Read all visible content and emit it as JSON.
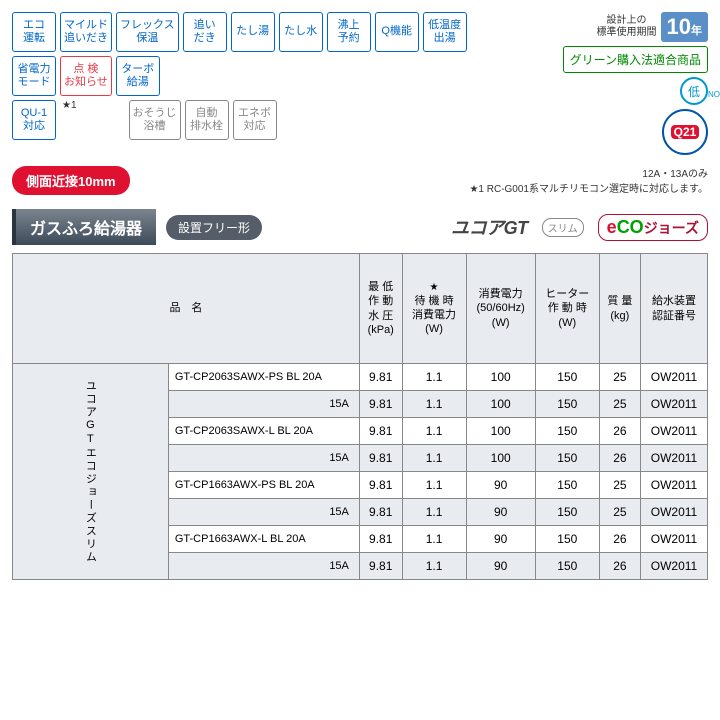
{
  "features": {
    "r1": [
      "エコ\n運転",
      "マイルド\n追いだき",
      "フレックス\n保温",
      "追い\nだき",
      "たし湯",
      "たし水",
      "沸上\n予約",
      "Q機能",
      "低温度\n出湯"
    ],
    "r2_a": [
      "省電力\nモード"
    ],
    "r2_red": "点 検\nお知らせ",
    "r2_b": [
      "ターボ\n給湯"
    ],
    "r3_a": [
      "QU-1\n対応"
    ],
    "r3_gray": [
      "おそうじ\n浴槽",
      "自動\n排水栓",
      "エネボ\n対応"
    ]
  },
  "design_label": "設計上の\n標準使用期間",
  "ten": "10",
  "ten_unit": "年",
  "green_badge": "グリーン購入法適合商品",
  "low_nox": "低",
  "low_nox_sub": "NOx",
  "q21": "Q21",
  "star1_mark": "★1",
  "side_badge": "側面近接10mm",
  "note_12a": "12A・13Aのみ",
  "note_star1": "★1 RC-G001系マルチリモコン選定時に対応します。",
  "title": "ガスふろ給湯器",
  "sub_pill": "設置フリー形",
  "brand_gt": "ユコアGT",
  "slim": "スリム",
  "eco_e": "e",
  "eco_c": "CO",
  "eco_rest": "ジョーズ",
  "table": {
    "head_name": "品　名",
    "head_vert": "ユコアGTエコジョーズスリム",
    "cols": [
      "最 低\n作 動\n水 圧\n(kPa)",
      "待 機 時\n消費電力\n(W)",
      "消費電力\n(50/60Hz)\n(W)",
      "ヒーター\n作 動 時\n(W)",
      "質 量\n(kg)",
      "給水装置\n認証番号"
    ],
    "rows": [
      {
        "name": "GT-CP2063SAWX-PS BL",
        "a": "20A",
        "v": [
          "9.81",
          "1.1",
          "100",
          "150",
          "25",
          "OW2011"
        ],
        "alt": false
      },
      {
        "name": "",
        "a": "15A",
        "v": [
          "9.81",
          "1.1",
          "100",
          "150",
          "25",
          "OW2011"
        ],
        "alt": true
      },
      {
        "name": "GT-CP2063SAWX-L BL",
        "a": "20A",
        "v": [
          "9.81",
          "1.1",
          "100",
          "150",
          "26",
          "OW2011"
        ],
        "alt": false
      },
      {
        "name": "",
        "a": "15A",
        "v": [
          "9.81",
          "1.1",
          "100",
          "150",
          "26",
          "OW2011"
        ],
        "alt": true
      },
      {
        "name": "GT-CP1663AWX-PS BL",
        "a": "20A",
        "v": [
          "9.81",
          "1.1",
          "90",
          "150",
          "25",
          "OW2011"
        ],
        "alt": false
      },
      {
        "name": "",
        "a": "15A",
        "v": [
          "9.81",
          "1.1",
          "90",
          "150",
          "25",
          "OW2011"
        ],
        "alt": true
      },
      {
        "name": "GT-CP1663AWX-L BL",
        "a": "20A",
        "v": [
          "9.81",
          "1.1",
          "90",
          "150",
          "26",
          "OW2011"
        ],
        "alt": false
      },
      {
        "name": "",
        "a": "15A",
        "v": [
          "9.81",
          "1.1",
          "90",
          "150",
          "26",
          "OW2011"
        ],
        "alt": true
      }
    ]
  }
}
